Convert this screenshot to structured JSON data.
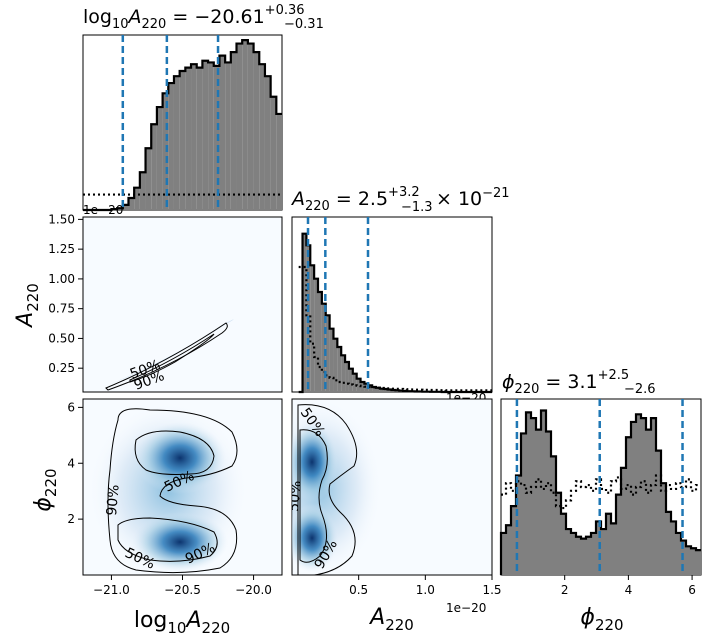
{
  "chart_data": {
    "type": "corner",
    "parameters": [
      {
        "label_base": "log",
        "label_base_sub": "10",
        "label_var": "A",
        "label_sub": "220"
      },
      {
        "label_var": "A",
        "label_sub": "220"
      },
      {
        "label_var": "ϕ",
        "label_sub": "220"
      }
    ],
    "titles": [
      {
        "name": "log",
        "name_sub": "10",
        "var": "A",
        "sub": "220",
        "value": "−20.61",
        "plus": "+0.36",
        "minus": "−0.31",
        "suffix": ""
      },
      {
        "name": "",
        "name_sub": "",
        "var": "A",
        "sub": "220",
        "value": "2.5",
        "plus": "+3.2",
        "minus": "−1.3",
        "suffix": "× 10",
        "suffix_exp": "−21"
      },
      {
        "name": "",
        "name_sub": "",
        "var": "ϕ",
        "sub": "220",
        "value": "3.1",
        "plus": "+2.5",
        "minus": "−2.6",
        "suffix": ""
      }
    ],
    "offset_labels": [
      "1e−20",
      "1e−20",
      "1e−20"
    ],
    "x_ticks": {
      "logA": [
        -21.0,
        -20.5,
        -20.0
      ],
      "logA_labels": [
        "−21.0",
        "−20.5",
        "−20.0"
      ],
      "A": [
        0.5,
        1.0,
        1.5
      ],
      "A_labels": [
        "0.5",
        "1.0",
        "1.5"
      ],
      "phi": [
        2,
        4,
        6
      ],
      "phi_labels": [
        "2",
        "4",
        "6"
      ]
    },
    "y_ticks": {
      "A": [
        0.25,
        0.5,
        0.75,
        1.0,
        1.25,
        1.5
      ],
      "A_labels": [
        "0.25",
        "0.50",
        "0.75",
        "1.00",
        "1.25",
        "1.50"
      ],
      "phi": [
        2,
        4,
        6
      ],
      "phi_labels": [
        "2",
        "4",
        "6"
      ]
    },
    "ranges": {
      "logA": [
        -21.2,
        -19.8
      ],
      "A": [
        0.0,
        1.5
      ],
      "phi": [
        0.0,
        6.28
      ]
    },
    "ranges_y2": {
      "A": [
        0.05,
        1.52
      ],
      "phi": [
        0.0,
        6.3
      ]
    },
    "hist_logA": {
      "edges_start": -21.2,
      "bin_width": 0.04,
      "posterior": [
        0,
        0,
        0,
        0,
        0,
        0.005,
        0.01,
        0.03,
        0.07,
        0.13,
        0.22,
        0.36,
        0.5,
        0.6,
        0.68,
        0.74,
        0.78,
        0.81,
        0.83,
        0.85,
        0.83,
        0.87,
        0.86,
        0.84,
        0.9,
        0.86,
        0.92,
        0.97,
        0.99,
        0.97,
        0.92,
        0.85,
        0.78,
        0.66,
        0.56,
        0.44,
        0.33,
        0.23,
        0.16,
        0.1,
        0.07,
        0.05,
        0.03,
        0.02,
        0.01,
        0.01,
        0.005,
        0.003,
        0.002,
        0.001,
        0,
        0
      ],
      "prior_level": 0.09,
      "quantiles": [
        -20.92,
        -20.61,
        -20.25
      ]
    },
    "hist_A": {
      "edges_start": 0.05,
      "bin_width": 0.029,
      "posterior": [
        0,
        0.95,
        0.88,
        0.76,
        0.68,
        0.6,
        0.53,
        0.46,
        0.38,
        0.32,
        0.27,
        0.22,
        0.18,
        0.14,
        0.11,
        0.08,
        0.06,
        0.05,
        0.04,
        0.03,
        0.025,
        0.02,
        0.018,
        0.015,
        0.012,
        0.01,
        0.008,
        0.006,
        0.005,
        0.004,
        0.003,
        0.003,
        0.002,
        0.002,
        0.001,
        0.001,
        0.001,
        0,
        0,
        0,
        0,
        0,
        0,
        0,
        0,
        0,
        0,
        0,
        0,
        0
      ],
      "prior": [
        0.75,
        0.75,
        0.46,
        0.29,
        0.21,
        0.15,
        0.12,
        0.1,
        0.085,
        0.07,
        0.06,
        0.055,
        0.05,
        0.045,
        0.04,
        0.038,
        0.035,
        0.032,
        0.03,
        0.028,
        0.026,
        0.024,
        0.022,
        0.021,
        0.02,
        0.019,
        0.018,
        0.017,
        0.016,
        0.015,
        0.014,
        0.014,
        0.013,
        0.013,
        0.012,
        0.012,
        0.011,
        0.011,
        0.01,
        0.01,
        0.01,
        0.01,
        0.01,
        0.01,
        0.01,
        0.01,
        0.01,
        0.01,
        0.01,
        0.01
      ],
      "quantiles": [
        0.12,
        0.25,
        0.57
      ]
    },
    "hist_phi": {
      "edges_start": 0.0,
      "bin_width": 0.157,
      "posterior": [
        0.22,
        0.26,
        0.36,
        0.52,
        0.74,
        0.85,
        0.82,
        0.76,
        0.86,
        0.75,
        0.62,
        0.43,
        0.32,
        0.24,
        0.22,
        0.2,
        0.19,
        0.2,
        0.22,
        0.28,
        0.24,
        0.32,
        0.27,
        0.42,
        0.56,
        0.72,
        0.8,
        0.84,
        0.82,
        0.76,
        0.82,
        0.65,
        0.48,
        0.33,
        0.28,
        0.22,
        0.18,
        0.15,
        0.14,
        0.13
      ],
      "prior": [
        0.42,
        0.48,
        0.44,
        0.49,
        0.47,
        0.43,
        0.46,
        0.5,
        0.45,
        0.48,
        0.43,
        0.36,
        0.35,
        0.39,
        0.44,
        0.49,
        0.46,
        0.47,
        0.44,
        0.5,
        0.45,
        0.43,
        0.49,
        0.51,
        0.45,
        0.47,
        0.42,
        0.46,
        0.49,
        0.43,
        0.47,
        0.52,
        0.44,
        0.47,
        0.45,
        0.48,
        0.46,
        0.5,
        0.44,
        0.47
      ],
      "quantiles": [
        0.5,
        3.1,
        5.7
      ]
    },
    "contour_labels": {
      "logA_A": [
        "50%",
        "90%"
      ],
      "logA_phi": [
        "90%",
        "50%",
        "50%",
        "90%"
      ],
      "A_phi": [
        "50%",
        "50%",
        "90%"
      ]
    }
  }
}
